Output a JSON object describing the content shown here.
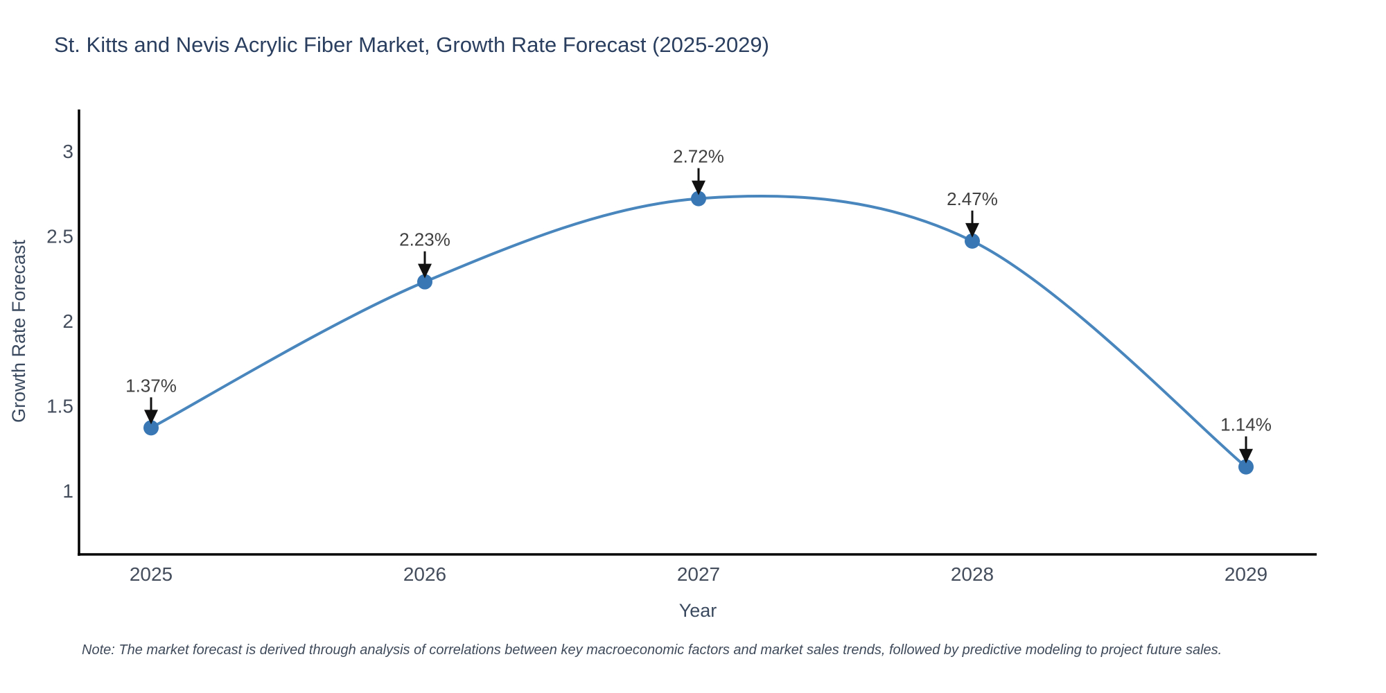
{
  "title": "St. Kitts and Nevis Acrylic Fiber Market, Growth Rate Forecast (2025-2029)",
  "note": "Note: The market forecast is derived through analysis of correlations between key macroeconomic factors and market sales trends, followed by predictive modeling to project future sales.",
  "chart_data": {
    "type": "line",
    "title": "St. Kitts and Nevis Acrylic Fiber Market, Growth Rate Forecast (2025-2029)",
    "xlabel": "Year",
    "ylabel": "Growth Rate Forecast",
    "x": [
      "2025",
      "2026",
      "2027",
      "2028",
      "2029"
    ],
    "series": [
      {
        "name": "Growth Rate Forecast",
        "values": [
          1.37,
          2.23,
          2.72,
          2.47,
          1.14
        ]
      }
    ],
    "point_labels": [
      "1.37%",
      "2.23%",
      "2.72%",
      "2.47%",
      "1.14%"
    ],
    "yticks": [
      1,
      1.5,
      2,
      2.5,
      3
    ],
    "ylim": [
      0.62,
      3.22
    ],
    "line_shape": "spline",
    "grid": false,
    "legend_position": "none",
    "annotation_style": "label-with-down-arrow",
    "colors": {
      "line": "#4886bd",
      "marker": "#3877b4",
      "axis": "#000000",
      "title_text": "#2a3f5f",
      "tick_text": "#444d5c",
      "axis_label_text": "#3b4a5f",
      "annotation_text": "#404040",
      "annotation_arrow": "#111111",
      "note_text": "#3f4a5a",
      "background": "#ffffff"
    }
  }
}
